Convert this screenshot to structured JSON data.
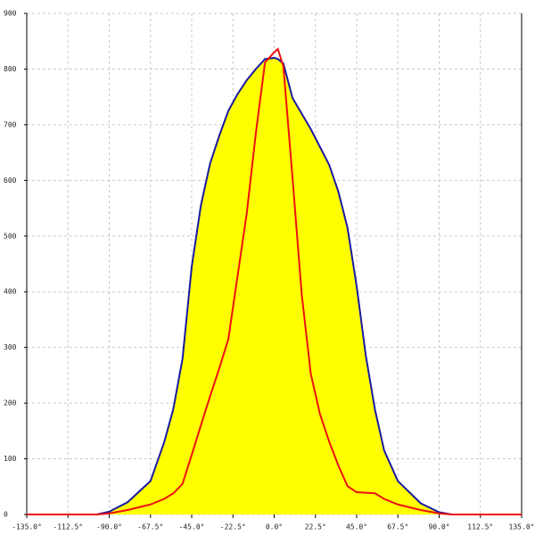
{
  "chart_data": {
    "type": "area",
    "x": [
      -135,
      -100,
      -97,
      -90,
      -80,
      -67.5,
      -60,
      -55,
      -50,
      -45,
      -40,
      -35,
      -30,
      -25,
      -20,
      -15,
      -10,
      -5,
      0,
      2,
      5,
      10,
      15,
      20,
      25,
      30,
      35,
      40,
      45,
      50,
      55,
      60,
      67.5,
      80,
      90,
      97,
      100,
      135
    ],
    "series": [
      {
        "color": "#1a1aa0",
        "fill": "#ffff00",
        "values": [
          null,
          null,
          0,
          5,
          22,
          60,
          130,
          190,
          280,
          445,
          555,
          630,
          680,
          725,
          755,
          780,
          800,
          818,
          820,
          818,
          810,
          748,
          720,
          692,
          660,
          628,
          580,
          515,
          410,
          285,
          188,
          115,
          60,
          20,
          4,
          0,
          null,
          null
        ]
      },
      {
        "color": "#ee1111",
        "values": [
          0,
          0,
          0,
          2,
          8,
          18,
          28,
          38,
          55,
          107,
          160,
          212,
          262,
          315,
          428,
          540,
          685,
          812,
          830,
          836,
          805,
          605,
          396,
          252,
          180,
          131,
          88,
          51,
          40,
          39,
          38,
          28,
          18,
          8,
          2,
          0,
          0,
          0
        ]
      }
    ],
    "xlim": [
      -135,
      135
    ],
    "xticks": [
      {
        "value": -135,
        "label": "-135.0°"
      },
      {
        "value": -112.5,
        "label": "-112.5°"
      },
      {
        "value": -90,
        "label": "-90.0°"
      },
      {
        "value": -67.5,
        "label": "-67.5°"
      },
      {
        "value": -45,
        "label": "-45.0°"
      },
      {
        "value": -22.5,
        "label": "-22.5°"
      },
      {
        "value": 0,
        "label": "0.0°"
      },
      {
        "value": 22.5,
        "label": "22.5°"
      },
      {
        "value": 45,
        "label": "45.0°"
      },
      {
        "value": 67.5,
        "label": "67.5°"
      },
      {
        "value": 90,
        "label": "90.0°"
      },
      {
        "value": 112.5,
        "label": "112.5°"
      },
      {
        "value": 135,
        "label": "135.0°"
      }
    ],
    "ylim": [
      0,
      900
    ],
    "yticks": [
      0,
      100,
      200,
      300,
      400,
      500,
      600,
      700,
      800,
      900
    ],
    "grid": true
  }
}
